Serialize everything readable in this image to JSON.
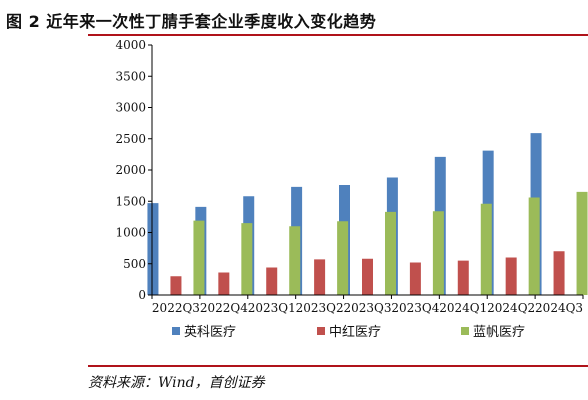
{
  "header": {
    "title": "图 2  近年来一次性丁腈手套企业季度收入变化趋势"
  },
  "footer": {
    "source": "资料来源：Wind，首创证券"
  },
  "colors": {
    "rule": "#b0131a",
    "axis": "#000000"
  },
  "chart_data": {
    "type": "bar",
    "categories": [
      "2022Q3",
      "2022Q4",
      "2023Q1",
      "2023Q2",
      "2023Q3",
      "2023Q4",
      "2024Q1",
      "2024Q2",
      "2024Q3"
    ],
    "series": [
      {
        "name": "英科医疗",
        "color": "#4f81bd",
        "values": [
          1470,
          1410,
          1580,
          1730,
          1760,
          1880,
          2210,
          2310,
          2590
        ]
      },
      {
        "name": "中红医疗",
        "color": "#c0504d",
        "values": [
          300,
          360,
          440,
          570,
          580,
          520,
          550,
          600,
          700
        ]
      },
      {
        "name": "蓝帆医疗",
        "color": "#9bbb59",
        "values": [
          1190,
          1150,
          1100,
          1180,
          1330,
          1340,
          1460,
          1560,
          1650
        ]
      }
    ],
    "ylim": [
      0,
      4000
    ],
    "yticks": [
      0,
      500,
      1000,
      1500,
      2000,
      2500,
      3000,
      3500,
      4000
    ],
    "legend": "bottom",
    "grid": false
  }
}
